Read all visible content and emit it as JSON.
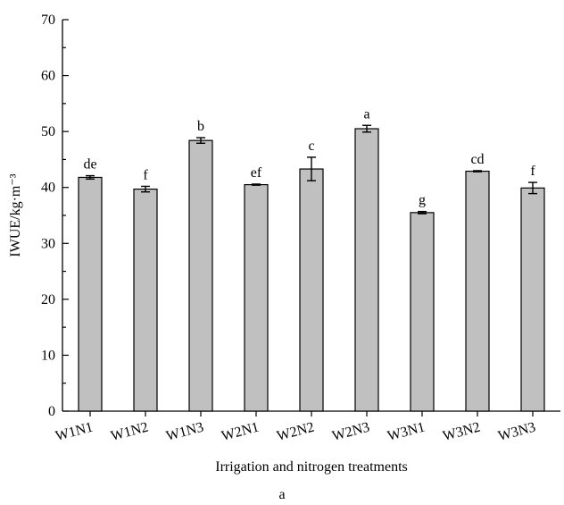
{
  "chart_data": {
    "type": "bar",
    "categories": [
      "W1N1",
      "W1N2",
      "W1N3",
      "W2N1",
      "W2N2",
      "W2N3",
      "W3N1",
      "W3N2",
      "W3N3"
    ],
    "values": [
      41.8,
      39.7,
      48.4,
      40.5,
      43.3,
      50.5,
      35.5,
      42.9,
      39.9
    ],
    "errors": [
      0.3,
      0.5,
      0.5,
      0.1,
      2.1,
      0.6,
      0.2,
      0.1,
      1.0
    ],
    "significance_letters": [
      "de",
      "f",
      "b",
      "ef",
      "c",
      "a",
      "g",
      "cd",
      "f"
    ],
    "xlabel": "Irrigation and nitrogen treatments",
    "ylabel": "IWUE/kg·m⁻³",
    "ylim": [
      0,
      70
    ],
    "yticks": [
      0,
      10,
      20,
      30,
      40,
      50,
      60,
      70
    ],
    "grid": false,
    "bar_color": "#c0c0c0",
    "panel_label": "a"
  }
}
